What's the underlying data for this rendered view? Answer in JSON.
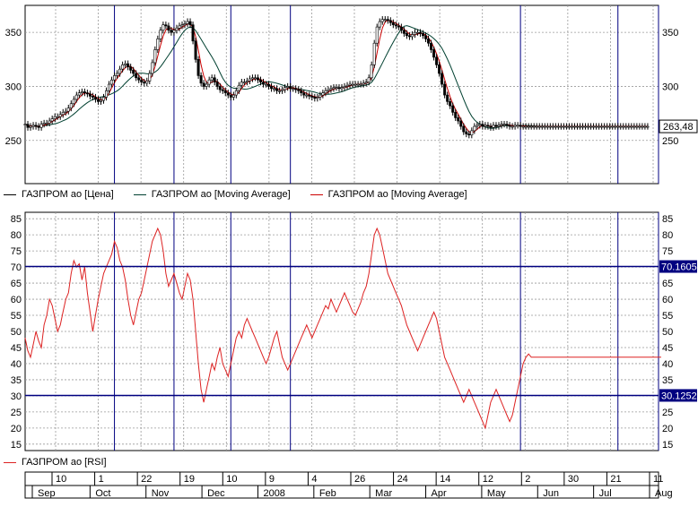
{
  "colors": {
    "price": "#000000",
    "ma_long": "#004030",
    "ma_short": "#cc0000",
    "rsi": "#dd2222",
    "marker": "#000080",
    "grid": "#999999",
    "badge_bg": "#000080",
    "badge_fg": "#ffffff",
    "last_price_bg": "#ffffff"
  },
  "price_panel": {
    "last_price_label": "263,48",
    "legend": [
      {
        "label": "ГАЗПРОМ ао [Цена]",
        "color": "#000000"
      },
      {
        "label": "ГАЗПРОМ ао [Moving Average]",
        "color": "#004030"
      },
      {
        "label": "ГАЗПРОМ ао [Moving Average]",
        "color": "#cc0000"
      }
    ]
  },
  "rsi_panel": {
    "legend": [
      {
        "label": "ГАЗПРОМ ао [RSI]",
        "color": "#dd2222"
      }
    ],
    "upper_level_label": "70.1605",
    "lower_level_label": "30.1252",
    "upper_level": 70.1605,
    "lower_level": 30.1252
  },
  "date_axis": {
    "day_ticks": [
      "10",
      "1",
      "22",
      "19",
      "10",
      "9",
      "4",
      "26",
      "24",
      "14",
      "12",
      "2",
      "30",
      "21",
      "11"
    ],
    "month_ticks": [
      "Sep",
      "Oct",
      "Nov",
      "Dec",
      "2008",
      "Feb",
      "Mar",
      "Apr",
      "May",
      "Jun",
      "Jul",
      "Aug"
    ]
  },
  "chart_data": [
    {
      "type": "line",
      "name": "price",
      "ylim": [
        210,
        375
      ],
      "yticks": [
        250,
        300,
        350
      ],
      "grid": true,
      "x_count": 235,
      "vertical_markers_index": [
        33,
        55,
        76,
        98,
        183,
        219,
        234
      ],
      "series": [
        {
          "name": "ГАЗПРОМ ао [Цена]",
          "values": [
            265,
            262,
            263,
            264,
            263,
            262,
            265,
            266,
            266,
            268,
            270,
            272,
            272,
            274,
            276,
            277,
            280,
            284,
            288,
            292,
            294,
            295,
            294,
            293,
            291,
            290,
            288,
            286,
            287,
            290,
            296,
            302,
            306,
            310,
            312,
            316,
            320,
            321,
            318,
            315,
            312,
            308,
            306,
            304,
            303,
            305,
            312,
            322,
            334,
            344,
            352,
            357,
            356,
            352,
            350,
            352,
            354,
            356,
            357,
            358,
            360,
            357,
            342,
            325,
            310,
            303,
            300,
            302,
            306,
            308,
            304,
            300,
            297,
            296,
            294,
            292,
            290,
            292,
            296,
            301,
            304,
            304,
            305,
            307,
            308,
            308,
            306,
            304,
            302,
            302,
            300,
            298,
            298,
            296,
            296,
            297,
            299,
            300,
            298,
            298,
            297,
            296,
            294,
            292,
            292,
            291,
            290,
            289,
            290,
            292,
            294,
            296,
            297,
            298,
            299,
            299,
            298,
            299,
            300,
            301,
            302,
            302,
            302,
            302,
            302,
            303,
            304,
            308,
            320,
            340,
            355,
            360,
            362,
            362,
            361,
            359,
            357,
            356,
            355,
            352,
            349,
            347,
            346,
            348,
            350,
            350,
            349,
            347,
            344,
            340,
            334,
            327,
            320,
            312,
            302,
            292,
            286,
            282,
            276,
            271,
            268,
            263,
            258,
            256,
            255,
            259,
            263,
            264,
            265,
            263,
            264,
            263,
            262,
            264,
            263,
            264,
            265,
            265,
            264,
            263,
            263,
            264,
            264,
            263,
            263,
            263,
            263,
            263,
            263,
            263,
            263,
            263,
            263,
            263,
            263,
            263,
            263,
            263,
            263,
            263,
            263,
            263,
            263,
            263,
            263,
            263,
            263,
            263,
            263,
            263,
            263,
            263,
            263,
            263,
            263,
            263,
            263,
            263,
            263,
            263,
            263,
            263,
            263,
            263,
            263,
            263,
            263,
            263,
            263,
            263,
            263
          ]
        },
        {
          "name": "ГАЗПРОМ ао [Moving Average]",
          "values": []
        },
        {
          "name": "ГАЗПРОМ ао [Moving Average]",
          "values": []
        }
      ]
    },
    {
      "type": "line",
      "name": "rsi",
      "ylim": [
        13,
        87
      ],
      "yticks": [
        15,
        20,
        25,
        30,
        35,
        40,
        45,
        50,
        55,
        60,
        65,
        70,
        75,
        80,
        85
      ],
      "grid": true,
      "series": [
        {
          "name": "ГАЗПРОМ ао [RSI]",
          "values": [
            48,
            44,
            42,
            46,
            50,
            47,
            45,
            52,
            55,
            60,
            58,
            54,
            50,
            52,
            56,
            60,
            62,
            68,
            72,
            70,
            71,
            66,
            70,
            62,
            56,
            50,
            55,
            60,
            64,
            68,
            70,
            72,
            74,
            78,
            76,
            72,
            70,
            66,
            60,
            55,
            52,
            56,
            60,
            62,
            66,
            70,
            74,
            78,
            80,
            82,
            80,
            75,
            68,
            64,
            66,
            68,
            65,
            62,
            60,
            64,
            68,
            66,
            60,
            50,
            40,
            32,
            28,
            32,
            36,
            40,
            38,
            42,
            45,
            40,
            38,
            36,
            40,
            44,
            48,
            50,
            48,
            52,
            54,
            52,
            50,
            48,
            46,
            44,
            42,
            40,
            42,
            45,
            48,
            50,
            46,
            42,
            40,
            38,
            40,
            42,
            44,
            46,
            48,
            50,
            52,
            50,
            48,
            50,
            52,
            54,
            56,
            58,
            57,
            60,
            58,
            56,
            58,
            60,
            62,
            60,
            58,
            56,
            55,
            57,
            59,
            62,
            64,
            68,
            74,
            80,
            82,
            80,
            76,
            72,
            68,
            66,
            64,
            62,
            60,
            58,
            55,
            52,
            50,
            48,
            46,
            44,
            46,
            48,
            50,
            52,
            54,
            56,
            54,
            50,
            46,
            42,
            40,
            38,
            36,
            34,
            32,
            30,
            28,
            30,
            32,
            30,
            28,
            26,
            24,
            22,
            20,
            24,
            28,
            30,
            32,
            30,
            28,
            26,
            24,
            22,
            24,
            28,
            32,
            36,
            40,
            42,
            43,
            42,
            42,
            42,
            42,
            42,
            42,
            42,
            42,
            42,
            42,
            42,
            42,
            42,
            42,
            42,
            42,
            42,
            42,
            42,
            42,
            42,
            42,
            42,
            42,
            42,
            42,
            42,
            42,
            42,
            42,
            42,
            42,
            42,
            42,
            42,
            42,
            42,
            42,
            42,
            42,
            42,
            42,
            42,
            42,
            42,
            42,
            42,
            42,
            42
          ]
        }
      ]
    }
  ]
}
